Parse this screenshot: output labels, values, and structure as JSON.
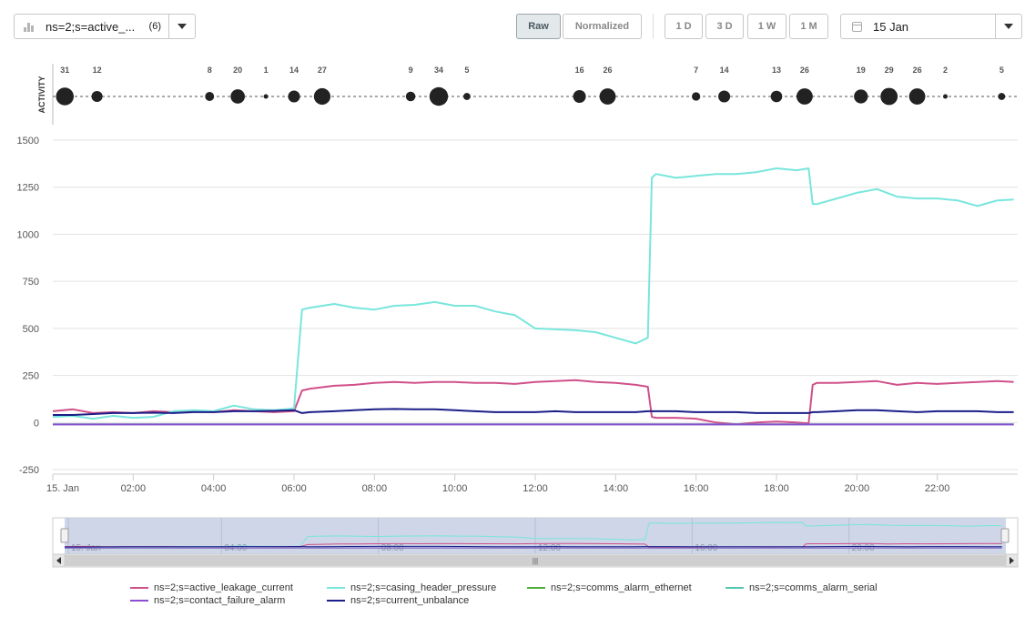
{
  "toolbar": {
    "series_select": {
      "text": "ns=2;s=active_...",
      "count": "(6)"
    },
    "buttons": {
      "raw": "Raw",
      "normalized": "Normalized",
      "d1": "1 D",
      "d3": "3 D",
      "w1": "1 W",
      "m1": "1 M"
    },
    "date": "15 Jan"
  },
  "activity": {
    "label": "ACTIVITY",
    "counts": [
      31,
      12,
      8,
      20,
      1,
      14,
      27,
      9,
      34,
      5,
      16,
      26,
      7,
      14,
      13,
      26,
      19,
      29,
      26,
      2,
      5
    ],
    "hours": [
      0.3,
      1.1,
      3.9,
      4.6,
      5.3,
      6.0,
      6.7,
      8.9,
      9.6,
      10.3,
      13.1,
      13.8,
      16.0,
      16.7,
      18.0,
      18.7,
      20.1,
      20.8,
      21.5,
      22.2,
      23.6
    ]
  },
  "chart_data": {
    "type": "line",
    "xlabel": "",
    "ylabel": "",
    "xlim": [
      0,
      24
    ],
    "ylim": [
      -250,
      1500
    ],
    "yticks": [
      "1500",
      "1250",
      "1000",
      "750",
      "500",
      "250",
      "0",
      "-250"
    ],
    "xticks": [
      "15. Jan",
      "02:00",
      "04:00",
      "06:00",
      "08:00",
      "10:00",
      "12:00",
      "14:00",
      "16:00",
      "18:00",
      "20:00",
      "22:00"
    ],
    "grid": true,
    "legend_position": "bottom",
    "x_hours": [
      0,
      0.5,
      1,
      1.5,
      2,
      2.5,
      3,
      3.5,
      4,
      4.5,
      5,
      5.5,
      6,
      6.2,
      6.4,
      7,
      7.5,
      8,
      8.5,
      9,
      9.5,
      10,
      10.5,
      11,
      11.5,
      12,
      12.5,
      13,
      13.5,
      14,
      14.5,
      14.8,
      14.9,
      15,
      15.5,
      16,
      16.5,
      17,
      17.5,
      18,
      18.5,
      18.8,
      18.9,
      19,
      19.5,
      20,
      20.5,
      21,
      21.5,
      22,
      22.5,
      23,
      23.5,
      23.9
    ],
    "series": [
      {
        "name": "ns=2;s=active_leakage_current",
        "color": "#d0508a",
        "values": [
          60,
          70,
          50,
          55,
          50,
          60,
          55,
          60,
          55,
          65,
          60,
          55,
          60,
          170,
          180,
          195,
          200,
          210,
          215,
          210,
          215,
          215,
          210,
          210,
          205,
          215,
          220,
          225,
          215,
          210,
          200,
          190,
          30,
          25,
          25,
          20,
          0,
          -10,
          0,
          5,
          0,
          -5,
          200,
          210,
          210,
          215,
          220,
          200,
          210,
          205,
          210,
          215,
          220,
          215
        ]
      },
      {
        "name": "ns=2;s=casing_header_pressure",
        "color": "#78e6dc",
        "values": [
          30,
          35,
          20,
          35,
          25,
          30,
          60,
          65,
          60,
          90,
          70,
          65,
          75,
          600,
          610,
          630,
          610,
          600,
          620,
          625,
          640,
          620,
          620,
          590,
          570,
          500,
          495,
          490,
          480,
          450,
          420,
          450,
          1300,
          1320,
          1300,
          1310,
          1320,
          1320,
          1330,
          1350,
          1340,
          1350,
          1160,
          1160,
          1190,
          1220,
          1240,
          1200,
          1190,
          1190,
          1180,
          1150,
          1180,
          1185
        ]
      },
      {
        "name": "ns=2;s=comms_alarm_ethernet",
        "color": "#4caf35",
        "values": [
          -10,
          -10,
          -10,
          -10,
          -10,
          -10,
          -10,
          -10,
          -10,
          -10,
          -10,
          -10,
          -10,
          -10,
          -10,
          -10,
          -10,
          -10,
          -10,
          -10,
          -10,
          -10,
          -10,
          -10,
          -10,
          -10,
          -10,
          -10,
          -10,
          -10,
          -10,
          -10,
          -10,
          -10,
          -10,
          -10,
          -10,
          -10,
          -10,
          -10,
          -10,
          -10,
          -10,
          -10,
          -10,
          -10,
          -10,
          -10,
          -10,
          -10,
          -10,
          -10,
          -10,
          -10
        ]
      },
      {
        "name": "ns=2;s=comms_alarm_serial",
        "color": "#55c7b0",
        "values": [
          -10,
          -10,
          -10,
          -10,
          -10,
          -10,
          -10,
          -10,
          -10,
          -10,
          -10,
          -10,
          -10,
          -10,
          -10,
          -10,
          -10,
          -10,
          -10,
          -10,
          -10,
          -10,
          -10,
          -10,
          -10,
          -10,
          -10,
          -10,
          -10,
          -10,
          -10,
          -10,
          -10,
          -10,
          -10,
          -10,
          -10,
          -10,
          -10,
          -10,
          -10,
          -10,
          -10,
          -10,
          -10,
          -10,
          -10,
          -10,
          -10,
          -10,
          -10,
          -10,
          -10,
          -10
        ]
      },
      {
        "name": "ns=2;s=contact_failure_alarm",
        "color": "#8a4fd0",
        "values": [
          -10,
          -10,
          -10,
          -10,
          -10,
          -10,
          -10,
          -10,
          -10,
          -10,
          -10,
          -10,
          -10,
          -10,
          -10,
          -10,
          -10,
          -10,
          -10,
          -10,
          -10,
          -10,
          -10,
          -10,
          -10,
          -10,
          -10,
          -10,
          -10,
          -10,
          -10,
          -10,
          -10,
          -10,
          -10,
          -10,
          -10,
          -10,
          -10,
          -10,
          -10,
          -10,
          -10,
          -10,
          -10,
          -10,
          -10,
          -10,
          -10,
          -10,
          -10,
          -10,
          -10,
          -10
        ]
      },
      {
        "name": "ns=2;s=current_unbalance",
        "color": "#1a1e86",
        "values": [
          40,
          40,
          45,
          50,
          50,
          52,
          50,
          55,
          55,
          60,
          60,
          62,
          65,
          50,
          55,
          60,
          65,
          70,
          72,
          70,
          70,
          65,
          60,
          55,
          55,
          55,
          60,
          55,
          55,
          55,
          55,
          60,
          60,
          60,
          60,
          55,
          55,
          55,
          50,
          50,
          50,
          50,
          55,
          55,
          60,
          65,
          65,
          60,
          55,
          60,
          60,
          60,
          55,
          55
        ]
      }
    ]
  },
  "navigator": {
    "ticks": [
      "15. Jan",
      "04:00",
      "08:00",
      "12:00",
      "16:00",
      "20:00"
    ]
  }
}
